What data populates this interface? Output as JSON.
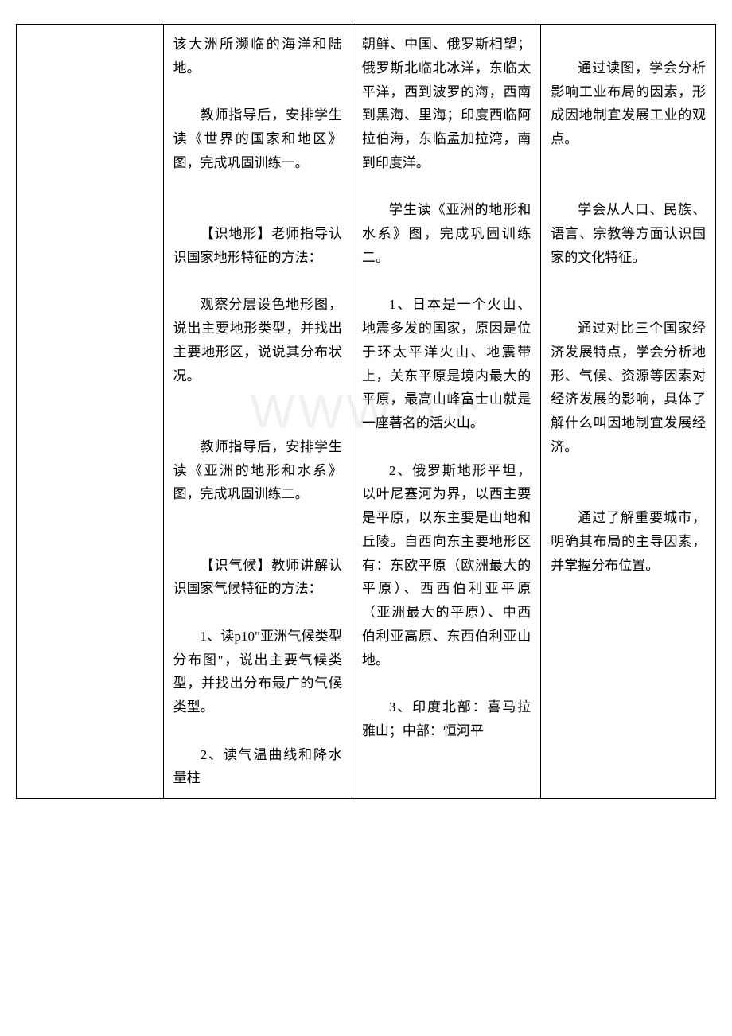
{
  "watermark": "WWW.b       c",
  "table": {
    "col1": "",
    "col2": {
      "p1": "该大洲所濒临的海洋和陆地。",
      "p2": "教师指导后，安排学生读《世界的国家和地区》图，完成巩固训练一。",
      "p3": "【识地形】老师指导认识国家地形特征的方法：",
      "p4": "观察分层设色地形图，说出主要地形类型，并找出主要地形区，说说其分布状况。",
      "p5": "教师指导后，安排学生读《亚洲的地形和水系》图，完成巩固训练二。",
      "p6": "【识气候】教师讲解认识国家气候特征的方法：",
      "p7": "1、读p10\"亚洲气候类型分布图\"，说出主要气候类型，并找出分布最广的气候类型。",
      "p8": "2、读气温曲线和降水量柱"
    },
    "col3": {
      "p1": "朝鲜、中国、俄罗斯相望；俄罗斯北临北冰洋，东临太平洋，西到波罗的海，西南到黑海、里海；印度西临阿拉伯海，东临孟加拉湾，南到印度洋。",
      "p2": "学生读《亚洲的地形和水系》图，完成巩固训练二。",
      "p3": "1、日本是一个火山、地震多发的国家，原因是位于环太平洋火山、地震带上，关东平原是境内最大的平原，最高山峰富士山就是一座著名的活火山。",
      "p4": "2、俄罗斯地形平坦，以叶尼塞河为界，以西主要是平原，以东主要是山地和丘陵。自西向东主要地形区有：东欧平原（欧洲最大的平原）、西西伯利亚平原（亚洲最大的平原）、中西伯利亚高原、东西伯利亚山地。",
      "p5": "3、印度北部：喜马拉雅山；中部：恒河平"
    },
    "col4": {
      "p1": "通过读图，学会分析影响工业布局的因素，形成因地制宜发展工业的观点。",
      "p2": "学会从人口、民族、语言、宗教等方面认识国家的文化特征。",
      "p3": "通过对比三个国家经济发展特点，学会分析地形、气候、资源等因素对经济发展的影响，具体了解什么叫因地制宜发展经济。",
      "p4": "通过了解重要城市，明确其布局的主导因素，并掌握分布位置。"
    }
  }
}
